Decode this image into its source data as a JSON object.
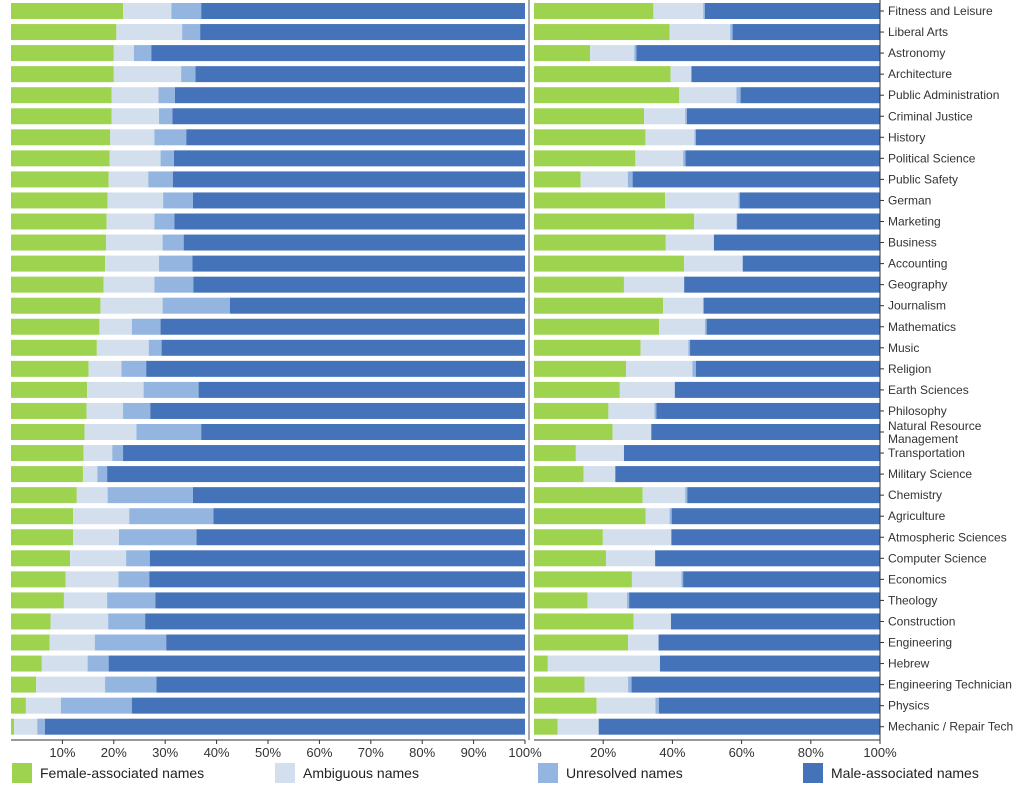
{
  "chart_data": [
    {
      "type": "bar",
      "orientation": "horizontal",
      "stacked": true,
      "categories": [
        "Fitness and Leisure",
        "Liberal Arts",
        "Astronomy",
        "Architecture",
        "Public Administration",
        "Criminal Justice",
        "History",
        "Political Science",
        "Public Safety",
        "German",
        "Marketing",
        "Business",
        "Accounting",
        "Geography",
        "Journalism",
        "Mathematics",
        "Music",
        "Religion",
        "Earth Sciences",
        "Philosophy",
        "Natural Resource Management",
        "Transportation",
        "Military Science",
        "Chemistry",
        "Agriculture",
        "Atmospheric Sciences",
        "Computer Science",
        "Economics",
        "Theology",
        "Construction",
        "Engineering",
        "Hebrew",
        "Engineering Technician",
        "Physics",
        "Mechanic / Repair Tech"
      ],
      "series": [
        {
          "name": "Female-associated names",
          "color": "#9ed350",
          "values": [
            21.8,
            20.5,
            20.0,
            20.0,
            19.6,
            19.6,
            19.3,
            19.2,
            19.0,
            18.8,
            18.6,
            18.5,
            18.3,
            18.0,
            17.4,
            17.2,
            16.7,
            15.1,
            14.8,
            14.7,
            14.3,
            14.1,
            14.0,
            12.8,
            12.1,
            12.1,
            11.5,
            10.6,
            10.3,
            7.7,
            7.5,
            6.0,
            4.9,
            2.9,
            0.6
          ]
        },
        {
          "name": "Ambiguous names",
          "color": "#d4dfee",
          "values": [
            9.4,
            12.8,
            3.9,
            13.1,
            9.1,
            9.2,
            8.6,
            9.9,
            7.7,
            10.8,
            9.3,
            11.0,
            10.5,
            9.9,
            12.1,
            6.3,
            10.1,
            6.4,
            11.0,
            7.1,
            10.1,
            5.6,
            2.8,
            6.0,
            10.9,
            8.9,
            10.9,
            10.3,
            8.4,
            11.2,
            8.8,
            8.9,
            13.4,
            6.8,
            4.5
          ]
        },
        {
          "name": "Unresolved names",
          "color": "#94b5e0",
          "values": [
            5.8,
            3.5,
            3.4,
            2.8,
            3.2,
            2.6,
            6.2,
            2.6,
            4.8,
            5.8,
            3.9,
            4.1,
            6.5,
            7.6,
            13.1,
            5.6,
            2.5,
            4.8,
            10.7,
            5.3,
            12.6,
            2.1,
            1.9,
            16.6,
            16.4,
            15.1,
            4.6,
            6.0,
            9.4,
            7.2,
            13.9,
            4.1,
            10.0,
            13.8,
            1.5
          ]
        },
        {
          "name": "Male-associated names",
          "color": "#4573b9",
          "values": [
            63.0,
            63.2,
            72.7,
            64.1,
            68.1,
            68.6,
            65.9,
            68.3,
            68.5,
            64.6,
            68.2,
            66.4,
            64.7,
            64.5,
            57.4,
            70.9,
            70.7,
            73.7,
            63.5,
            72.9,
            63.0,
            78.2,
            81.3,
            64.6,
            60.6,
            63.9,
            73.0,
            73.1,
            71.9,
            73.9,
            69.8,
            81.0,
            71.7,
            76.5,
            93.4
          ]
        }
      ],
      "xlim": [
        0,
        100
      ],
      "xticks": [
        "10%",
        "20%",
        "30%",
        "40%",
        "50%",
        "60%",
        "70%",
        "80%",
        "90%",
        "100%"
      ],
      "grid": false
    },
    {
      "type": "bar",
      "orientation": "horizontal",
      "stacked": true,
      "categories": [
        "Fitness and Leisure",
        "Liberal Arts",
        "Astronomy",
        "Architecture",
        "Public Administration",
        "Criminal Justice",
        "History",
        "Political Science",
        "Public Safety",
        "German",
        "Marketing",
        "Business",
        "Accounting",
        "Geography",
        "Journalism",
        "Mathematics",
        "Music",
        "Religion",
        "Earth Sciences",
        "Philosophy",
        "Natural Resource Management",
        "Transportation",
        "Military Science",
        "Chemistry",
        "Agriculture",
        "Atmospheric Sciences",
        "Computer Science",
        "Economics",
        "Theology",
        "Construction",
        "Engineering",
        "Hebrew",
        "Engineering Technician",
        "Physics",
        "Mechanic / Repair Tech"
      ],
      "series": [
        {
          "name": "Female-associated names",
          "color": "#9ed350",
          "values": [
            34.5,
            39.2,
            16.2,
            39.5,
            42.0,
            31.8,
            32.2,
            29.3,
            13.5,
            37.9,
            46.3,
            38.1,
            43.4,
            26.0,
            37.3,
            36.2,
            30.8,
            26.6,
            24.8,
            21.5,
            22.7,
            12.1,
            14.3,
            31.4,
            32.3,
            19.9,
            20.8,
            28.3,
            15.5,
            28.8,
            27.2,
            4.0,
            14.6,
            18.1,
            6.8
          ]
        },
        {
          "name": "Ambiguous names",
          "color": "#d4dfee",
          "values": [
            14.4,
            17.5,
            12.8,
            6.0,
            16.5,
            11.9,
            14.2,
            13.8,
            13.6,
            21.2,
            12.2,
            13.9,
            16.8,
            17.4,
            11.7,
            13.2,
            13.8,
            19.2,
            15.9,
            13.3,
            11.2,
            13.9,
            9.2,
            12.3,
            6.9,
            19.8,
            14.2,
            14.3,
            11.4,
            10.8,
            8.8,
            32.4,
            12.6,
            17.0,
            11.9
          ]
        },
        {
          "name": "Unresolved names",
          "color": "#94b5e0",
          "values": [
            0.5,
            0.7,
            0.6,
            0.0,
            1.2,
            0.5,
            0.4,
            0.7,
            1.4,
            0.4,
            0.2,
            0.0,
            0.2,
            0.0,
            0.0,
            0.5,
            0.5,
            1.0,
            0.0,
            0.6,
            0.0,
            0.0,
            0.0,
            0.6,
            0.6,
            0.0,
            0.0,
            0.5,
            0.6,
            0.0,
            0.0,
            0.0,
            1.0,
            1.0,
            0.0
          ]
        },
        {
          "name": "Male-associated names",
          "color": "#4573b9",
          "values": [
            50.6,
            42.6,
            70.4,
            54.5,
            40.3,
            55.8,
            53.2,
            56.2,
            71.5,
            40.5,
            41.3,
            48.0,
            39.6,
            56.6,
            51.0,
            50.1,
            54.9,
            53.2,
            59.3,
            64.6,
            66.1,
            74.0,
            76.5,
            55.7,
            60.2,
            60.3,
            65.0,
            56.9,
            72.5,
            60.4,
            64.0,
            63.6,
            71.8,
            63.9,
            81.3
          ]
        }
      ],
      "xlim": [
        0,
        100
      ],
      "xticks": [
        "20%",
        "40%",
        "60%",
        "80%",
        "100%"
      ],
      "grid": false
    }
  ],
  "category_labels": [
    "Fitness and Leisure",
    "Liberal Arts",
    "Astronomy",
    "Architecture",
    "Public Administration",
    "Criminal Justice",
    "History",
    "Political Science",
    "Public Safety",
    "German",
    "Marketing",
    "Business",
    "Accounting",
    "Geography",
    "Journalism",
    "Mathematics",
    "Music",
    "Religion",
    "Earth Sciences",
    "Philosophy",
    "Natural Resource Management",
    "Transportation",
    "Military Science",
    "Chemistry",
    "Agriculture",
    "Atmospheric Sciences",
    "Computer Science",
    "Economics",
    "Theology",
    "Construction",
    "Engineering",
    "Hebrew",
    "Engineering Technician",
    "Physics",
    "Mechanic / Repair Tech"
  ],
  "legend": [
    {
      "label": "Female-associated names",
      "color": "#9ed350"
    },
    {
      "label": "Ambiguous names",
      "color": "#d4dfee"
    },
    {
      "label": "Unresolved names",
      "color": "#94b5e0"
    },
    {
      "label": "Male-associated names",
      "color": "#4573b9"
    }
  ]
}
